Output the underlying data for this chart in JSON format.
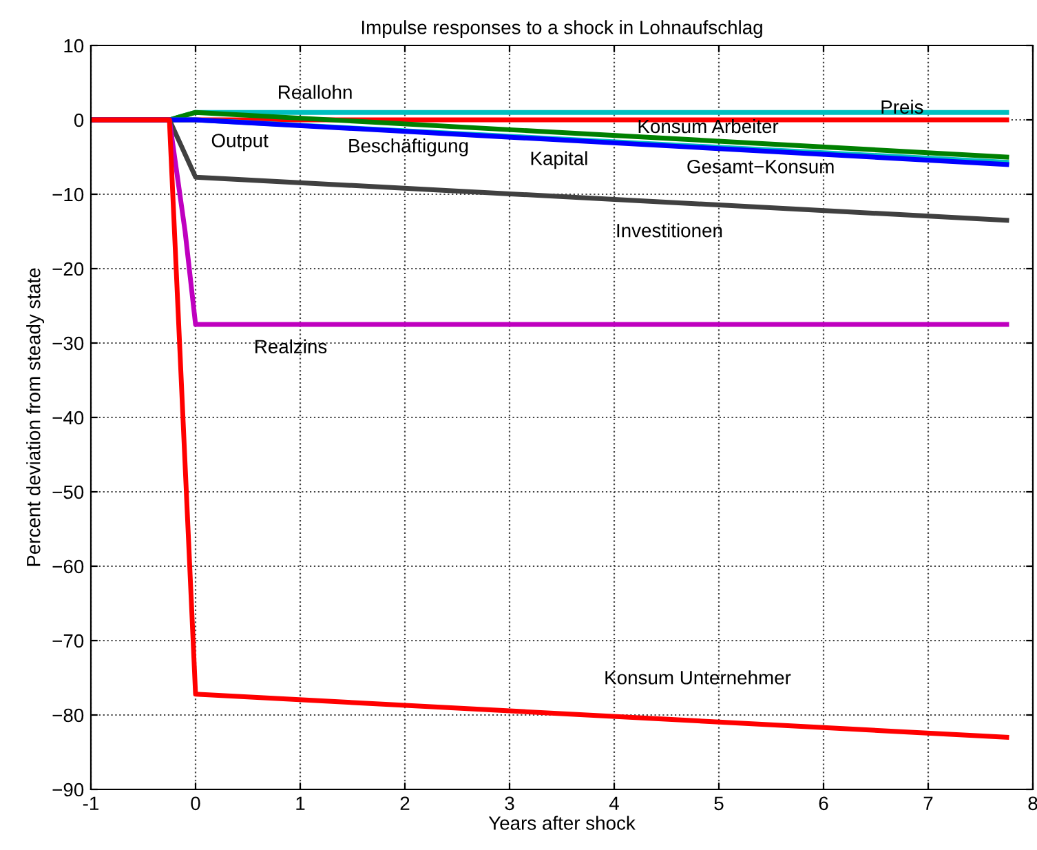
{
  "chart_data": {
    "type": "line",
    "title": "Impulse responses to a shock in Lohnaufschlag",
    "xlabel": "Years after shock",
    "ylabel": "Percent deviation from steady state",
    "xlim": [
      -1,
      8
    ],
    "xticks": [
      -1,
      0,
      1,
      2,
      3,
      4,
      5,
      6,
      7,
      8
    ],
    "ylim": [
      -90,
      10
    ],
    "yticks": [
      -90,
      -80,
      -70,
      -60,
      -50,
      -40,
      -30,
      -20,
      -10,
      0,
      10
    ],
    "grid": true,
    "line_style": "solid",
    "marker": "none",
    "series": [
      {
        "color": "#00bfbf",
        "x": [
          -1,
          -0.25,
          0,
          7.75
        ],
        "values": [
          0,
          0,
          1,
          1
        ]
      },
      {
        "color": "#ff0000",
        "x": [
          -1,
          -0.25,
          0,
          7.75
        ],
        "values": [
          0,
          0,
          0,
          0
        ]
      },
      {
        "color": "#008000",
        "x": [
          -1,
          -0.25,
          0,
          7.75
        ],
        "values": [
          0,
          0,
          1,
          -5
        ]
      },
      {
        "color": "#00bfbf",
        "x": [
          -1,
          -0.25,
          0,
          7.75
        ],
        "values": [
          0,
          0,
          0,
          -5.7
        ]
      },
      {
        "color": "#0000ff",
        "x": [
          -1,
          -0.25,
          0,
          7.75
        ],
        "values": [
          0,
          0,
          0,
          -6
        ]
      },
      {
        "color": "#404040",
        "x": [
          -1,
          -0.25,
          0,
          7.75
        ],
        "values": [
          0,
          0,
          -7.7,
          -13.5
        ]
      },
      {
        "color": "#bf00bf",
        "x": [
          -1,
          -0.25,
          -0.1,
          0,
          7.75
        ],
        "values": [
          0,
          0,
          -15,
          -27.5,
          -27.5
        ]
      },
      {
        "color": "#ff0000",
        "x": [
          -1,
          -0.25,
          0,
          7.75
        ],
        "values": [
          0,
          0,
          -77.2,
          -83
        ]
      }
    ],
    "annotations": [
      "Reallohn",
      "Output",
      "Beschäftigung",
      "Kapital",
      "Konsum Arbeiter",
      "Preis",
      "Gesamt−Konsum",
      "Investitionen",
      "Realzins",
      "Konsum Unternehmer"
    ]
  }
}
